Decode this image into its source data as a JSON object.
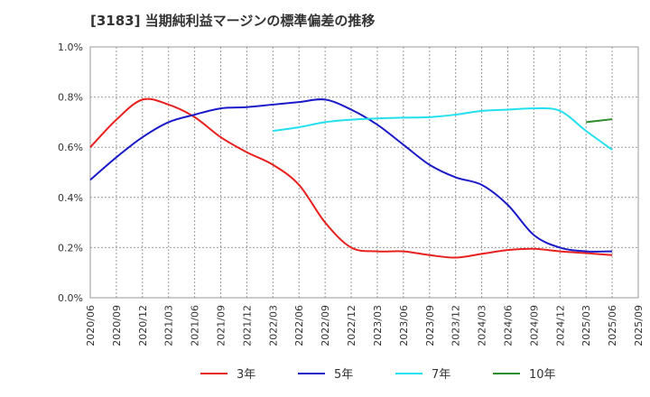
{
  "chart_data": {
    "type": "line",
    "title": "[3183]  当期純利益マージンの標準偏差の推移",
    "xlabel": "",
    "ylabel": "",
    "ylim": [
      0.0,
      1.0
    ],
    "y_ticks": [
      "0.0%",
      "0.2%",
      "0.4%",
      "0.6%",
      "0.8%",
      "1.0%"
    ],
    "y_tick_values": [
      0.0,
      0.2,
      0.4,
      0.6,
      0.8,
      1.0
    ],
    "x_ticks": [
      "2020/06",
      "2020/09",
      "2020/12",
      "2021/03",
      "2021/06",
      "2021/09",
      "2021/12",
      "2022/03",
      "2022/06",
      "2022/09",
      "2022/12",
      "2023/03",
      "2023/06",
      "2023/09",
      "2023/12",
      "2024/03",
      "2024/06",
      "2024/09",
      "2024/12",
      "2025/03",
      "2025/06",
      "2025/09"
    ],
    "grid": true,
    "legend_position": "bottom",
    "series": [
      {
        "name": "3年",
        "color": "#e8201e",
        "x": [
          "2020/06",
          "2020/09",
          "2020/12",
          "2021/03",
          "2021/06",
          "2021/09",
          "2021/12",
          "2022/03",
          "2022/06",
          "2022/09",
          "2022/12",
          "2023/03",
          "2023/06",
          "2023/09",
          "2023/12",
          "2024/03",
          "2024/06",
          "2024/09",
          "2024/12",
          "2025/03",
          "2025/06"
        ],
        "values": [
          0.6,
          0.71,
          0.79,
          0.77,
          0.72,
          0.64,
          0.58,
          0.53,
          0.45,
          0.3,
          0.2,
          0.185,
          0.185,
          0.17,
          0.16,
          0.175,
          0.19,
          0.195,
          0.185,
          0.178,
          0.17
        ]
      },
      {
        "name": "5年",
        "color": "#1a1ac8",
        "x": [
          "2020/06",
          "2020/09",
          "2020/12",
          "2021/03",
          "2021/06",
          "2021/09",
          "2021/12",
          "2022/03",
          "2022/06",
          "2022/09",
          "2022/12",
          "2023/03",
          "2023/06",
          "2023/09",
          "2023/12",
          "2024/03",
          "2024/06",
          "2024/09",
          "2024/12",
          "2025/03",
          "2025/06"
        ],
        "values": [
          0.47,
          0.56,
          0.64,
          0.7,
          0.73,
          0.755,
          0.76,
          0.77,
          0.78,
          0.79,
          0.75,
          0.69,
          0.61,
          0.53,
          0.48,
          0.45,
          0.37,
          0.25,
          0.2,
          0.185,
          0.185
        ]
      },
      {
        "name": "7年",
        "color": "#22e0ee",
        "x": [
          "2022/03",
          "2022/06",
          "2022/09",
          "2022/12",
          "2023/03",
          "2023/06",
          "2023/09",
          "2023/12",
          "2024/03",
          "2024/06",
          "2024/09",
          "2024/12",
          "2025/03",
          "2025/06"
        ],
        "values": [
          0.665,
          0.68,
          0.7,
          0.71,
          0.715,
          0.718,
          0.72,
          0.73,
          0.745,
          0.75,
          0.755,
          0.745,
          0.665,
          0.59
        ]
      },
      {
        "name": "10年",
        "color": "#2e8b2e",
        "x": [
          "2025/03",
          "2025/06"
        ],
        "values": [
          0.7,
          0.712
        ]
      }
    ]
  }
}
